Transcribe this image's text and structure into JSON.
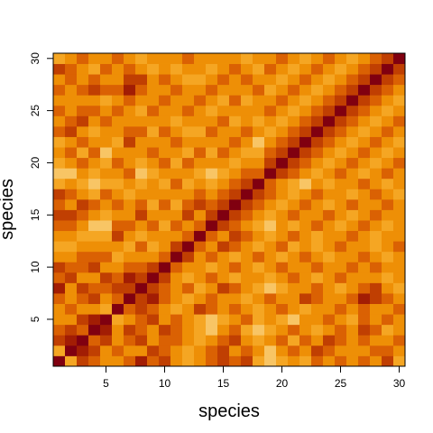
{
  "chart_data": {
    "type": "heatmap",
    "title": "",
    "xlabel": "species",
    "ylabel": "species",
    "n": 30,
    "xlim": [
      0.5,
      30.5
    ],
    "ylim": [
      0.5,
      30.5
    ],
    "xticks": [
      5,
      10,
      15,
      20,
      25,
      30
    ],
    "yticks": [
      5,
      10,
      15,
      20,
      25,
      30
    ],
    "grid": false,
    "legend": "none",
    "palette": [
      "#FFFFC8",
      "#FBE6A0",
      "#F8C565",
      "#F5A623",
      "#EE8F06",
      "#DA6103",
      "#C03F02",
      "#A21D04",
      "#800010"
    ],
    "values": [
      [
        8,
        3,
        6,
        5,
        4,
        4,
        5,
        7,
        5,
        6,
        4,
        3,
        4,
        5,
        6,
        5,
        6,
        3,
        2,
        3,
        4,
        3,
        5,
        4,
        5,
        4,
        5,
        4,
        6,
        3
      ],
      [
        3,
        8,
        7,
        6,
        4,
        5,
        4,
        4,
        6,
        5,
        4,
        3,
        4,
        5,
        6,
        4,
        5,
        4,
        2,
        4,
        5,
        4,
        6,
        5,
        4,
        4,
        4,
        5,
        5,
        4
      ],
      [
        6,
        7,
        8,
        5,
        6,
        4,
        5,
        6,
        4,
        5,
        5,
        4,
        3,
        4,
        5,
        6,
        4,
        3,
        4,
        5,
        3,
        5,
        4,
        6,
        5,
        4,
        5,
        4,
        4,
        5
      ],
      [
        5,
        6,
        5,
        8,
        7,
        4,
        6,
        5,
        4,
        6,
        5,
        4,
        3,
        2,
        4,
        5,
        3,
        2,
        3,
        4,
        5,
        4,
        3,
        4,
        5,
        4,
        6,
        5,
        3,
        4
      ],
      [
        4,
        4,
        6,
        7,
        8,
        3,
        4,
        5,
        6,
        4,
        5,
        4,
        3,
        2,
        3,
        4,
        5,
        3,
        4,
        3,
        2,
        4,
        4,
        5,
        4,
        3,
        5,
        4,
        5,
        4
      ],
      [
        4,
        5,
        4,
        4,
        3,
        8,
        5,
        6,
        5,
        4,
        3,
        4,
        6,
        5,
        4,
        5,
        4,
        3,
        4,
        5,
        4,
        3,
        4,
        4,
        5,
        4,
        5,
        4,
        4,
        5
      ],
      [
        5,
        4,
        5,
        6,
        4,
        5,
        8,
        6,
        7,
        5,
        4,
        3,
        4,
        5,
        4,
        4,
        3,
        4,
        5,
        4,
        4,
        6,
        5,
        4,
        4,
        5,
        7,
        6,
        5,
        4
      ],
      [
        7,
        4,
        6,
        5,
        5,
        6,
        6,
        8,
        6,
        5,
        4,
        5,
        3,
        4,
        6,
        5,
        4,
        3,
        2,
        3,
        4,
        4,
        5,
        4,
        3,
        4,
        5,
        6,
        4,
        3
      ],
      [
        5,
        6,
        4,
        4,
        6,
        5,
        7,
        6,
        8,
        6,
        4,
        3,
        4,
        5,
        4,
        3,
        4,
        4,
        3,
        4,
        5,
        4,
        3,
        4,
        5,
        4,
        4,
        4,
        3,
        4
      ],
      [
        6,
        5,
        5,
        6,
        4,
        4,
        5,
        5,
        6,
        8,
        5,
        4,
        4,
        3,
        4,
        5,
        4,
        3,
        4,
        5,
        4,
        4,
        5,
        4,
        4,
        5,
        4,
        5,
        4,
        4
      ],
      [
        4,
        4,
        5,
        5,
        5,
        3,
        4,
        4,
        4,
        5,
        8,
        6,
        4,
        5,
        4,
        3,
        4,
        5,
        4,
        3,
        4,
        5,
        4,
        3,
        4,
        4,
        5,
        4,
        3,
        4
      ],
      [
        3,
        3,
        4,
        4,
        4,
        4,
        3,
        5,
        3,
        4,
        6,
        8,
        5,
        4,
        6,
        5,
        4,
        3,
        4,
        5,
        3,
        4,
        3,
        4,
        5,
        4,
        4,
        3,
        4,
        5
      ],
      [
        4,
        4,
        3,
        3,
        3,
        6,
        4,
        3,
        4,
        4,
        4,
        5,
        8,
        5,
        4,
        6,
        5,
        4,
        3,
        4,
        5,
        4,
        3,
        4,
        4,
        5,
        4,
        3,
        4,
        4
      ],
      [
        5,
        5,
        4,
        2,
        2,
        5,
        5,
        4,
        5,
        3,
        5,
        4,
        5,
        8,
        6,
        5,
        4,
        3,
        2,
        4,
        3,
        4,
        5,
        4,
        3,
        4,
        5,
        4,
        3,
        4
      ],
      [
        6,
        6,
        5,
        4,
        3,
        4,
        4,
        6,
        4,
        4,
        4,
        6,
        4,
        6,
        8,
        6,
        5,
        4,
        3,
        4,
        5,
        4,
        4,
        5,
        4,
        3,
        4,
        5,
        4,
        4
      ],
      [
        5,
        4,
        6,
        5,
        4,
        5,
        4,
        5,
        3,
        5,
        3,
        5,
        6,
        5,
        6,
        8,
        6,
        5,
        4,
        3,
        4,
        5,
        4,
        3,
        4,
        5,
        4,
        4,
        5,
        4
      ],
      [
        6,
        5,
        4,
        3,
        5,
        4,
        3,
        4,
        4,
        4,
        4,
        4,
        5,
        4,
        5,
        6,
        8,
        6,
        5,
        4,
        3,
        4,
        5,
        4,
        4,
        3,
        4,
        5,
        4,
        3
      ],
      [
        3,
        4,
        3,
        2,
        3,
        3,
        4,
        3,
        4,
        3,
        5,
        3,
        4,
        3,
        4,
        5,
        6,
        8,
        5,
        4,
        3,
        2,
        4,
        3,
        4,
        4,
        5,
        4,
        3,
        4
      ],
      [
        2,
        2,
        4,
        3,
        4,
        4,
        5,
        2,
        3,
        4,
        4,
        4,
        3,
        2,
        3,
        4,
        5,
        5,
        8,
        6,
        5,
        4,
        3,
        4,
        5,
        4,
        3,
        4,
        5,
        4
      ],
      [
        3,
        4,
        5,
        4,
        3,
        5,
        4,
        3,
        4,
        5,
        3,
        5,
        4,
        4,
        4,
        3,
        4,
        4,
        6,
        8,
        6,
        5,
        4,
        3,
        4,
        5,
        4,
        3,
        4,
        5
      ],
      [
        4,
        5,
        3,
        5,
        2,
        4,
        4,
        4,
        5,
        4,
        4,
        3,
        5,
        3,
        5,
        4,
        3,
        3,
        5,
        6,
        8,
        6,
        5,
        4,
        3,
        4,
        5,
        4,
        3,
        4
      ],
      [
        3,
        4,
        5,
        4,
        4,
        3,
        6,
        4,
        4,
        4,
        5,
        4,
        4,
        4,
        4,
        5,
        4,
        2,
        4,
        5,
        6,
        8,
        6,
        5,
        4,
        3,
        4,
        5,
        4,
        3
      ],
      [
        5,
        6,
        4,
        3,
        4,
        4,
        5,
        5,
        3,
        5,
        4,
        3,
        3,
        5,
        4,
        4,
        5,
        4,
        3,
        4,
        5,
        6,
        8,
        6,
        5,
        4,
        3,
        4,
        5,
        4
      ],
      [
        4,
        5,
        6,
        4,
        5,
        4,
        4,
        4,
        4,
        4,
        3,
        4,
        4,
        4,
        5,
        3,
        4,
        3,
        4,
        3,
        4,
        5,
        6,
        8,
        6,
        5,
        4,
        3,
        4,
        5
      ],
      [
        5,
        4,
        5,
        5,
        4,
        5,
        4,
        3,
        5,
        4,
        4,
        5,
        4,
        3,
        4,
        4,
        4,
        4,
        5,
        4,
        3,
        4,
        5,
        6,
        8,
        6,
        5,
        4,
        3,
        4
      ],
      [
        4,
        4,
        4,
        4,
        3,
        4,
        5,
        4,
        4,
        5,
        4,
        4,
        5,
        4,
        3,
        5,
        3,
        4,
        4,
        5,
        4,
        3,
        4,
        5,
        6,
        8,
        6,
        5,
        4,
        3
      ],
      [
        5,
        4,
        5,
        6,
        5,
        5,
        7,
        5,
        4,
        4,
        5,
        4,
        4,
        5,
        4,
        4,
        4,
        5,
        3,
        4,
        5,
        4,
        3,
        4,
        5,
        6,
        8,
        6,
        5,
        4
      ],
      [
        4,
        5,
        4,
        5,
        4,
        4,
        6,
        6,
        4,
        5,
        4,
        3,
        3,
        4,
        5,
        4,
        5,
        4,
        4,
        3,
        4,
        5,
        4,
        3,
        4,
        5,
        6,
        8,
        6,
        5
      ],
      [
        6,
        5,
        4,
        3,
        5,
        4,
        5,
        4,
        3,
        4,
        3,
        4,
        4,
        3,
        4,
        5,
        4,
        3,
        5,
        4,
        3,
        4,
        5,
        4,
        3,
        4,
        5,
        6,
        8,
        6
      ],
      [
        3,
        4,
        5,
        4,
        4,
        5,
        4,
        3,
        4,
        4,
        4,
        5,
        4,
        4,
        4,
        4,
        3,
        4,
        4,
        5,
        4,
        3,
        4,
        5,
        4,
        3,
        4,
        5,
        6,
        8
      ]
    ]
  }
}
